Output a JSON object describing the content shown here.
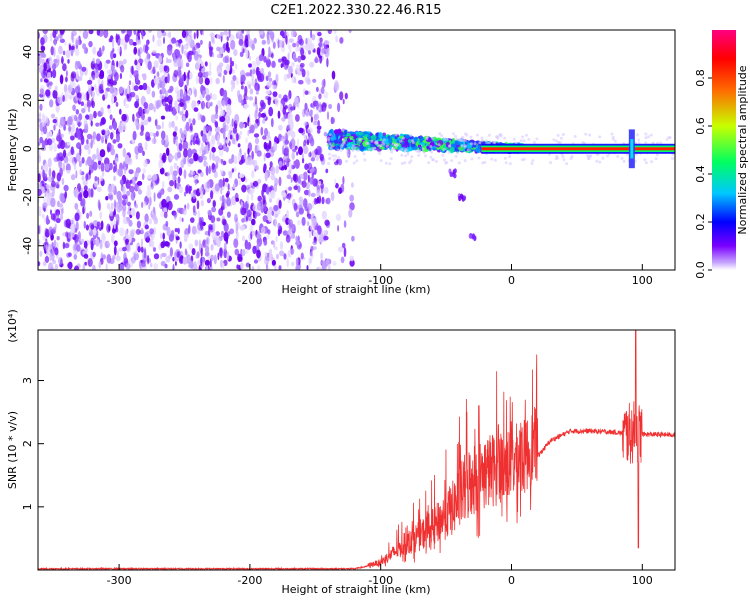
{
  "title": "C2E1.2022.330.22.46.R15",
  "chart_data": [
    {
      "type": "heatmap",
      "xlabel": "Height of straight line (km)",
      "ylabel": "Frequency (Hz)",
      "xlim": [
        -362,
        125
      ],
      "ylim": [
        -50,
        49
      ],
      "x_ticks": [
        -300,
        -200,
        -100,
        0,
        100
      ],
      "x_tick_labels": [
        "-300",
        "-200",
        "-100",
        "0",
        "100"
      ],
      "y_ticks": [
        -40,
        -20,
        0,
        20,
        40
      ],
      "y_tick_labels": [
        "-40",
        "-20",
        "0",
        "20",
        "40"
      ],
      "colorbar": {
        "label": "Normalized spectral amplitude",
        "range": [
          0,
          1
        ],
        "ticks": [
          0,
          0.2,
          0.4,
          0.6,
          0.8
        ],
        "tick_labels": [
          "0.0",
          "0.2",
          "0.4",
          "0.6",
          "0.8"
        ],
        "colormap": [
          "#ffffff",
          "#7a00ff",
          "#0000ff",
          "#00c8ff",
          "#00ff60",
          "#c8ff00",
          "#ff6a00",
          "#ff0000",
          "#ff0080"
        ]
      },
      "features": {
        "noise_region_x": [
          -362,
          -140
        ],
        "transition_region_x": [
          -140,
          10
        ],
        "tone_x": [
          0,
          125
        ],
        "tone_frequency_hz": 0,
        "spike_x": 92,
        "drift_branch": [
          [
            -45,
            -10
          ],
          [
            -38,
            -20
          ],
          [
            -30,
            -36
          ]
        ]
      },
      "grid": false
    },
    {
      "type": "line",
      "xlabel": "Height of straight line (km)",
      "ylabel": "SNR (10 * v/v)",
      "y_multiplier_label": "(x10⁴)",
      "xlim": [
        -362,
        125
      ],
      "ylim": [
        0,
        3.8
      ],
      "x_ticks": [
        -300,
        -200,
        -100,
        0,
        100
      ],
      "x_tick_labels": [
        "-300",
        "-200",
        "-100",
        "0",
        "100"
      ],
      "y_ticks": [
        1,
        2,
        3
      ],
      "y_tick_labels": [
        "1",
        "2",
        "3"
      ],
      "color": "#f03030",
      "envelope_points": [
        {
          "x": -362,
          "y": 0.02
        },
        {
          "x": -120,
          "y": 0.02
        },
        {
          "x": -100,
          "y": 0.1
        },
        {
          "x": -80,
          "y": 0.35
        },
        {
          "x": -60,
          "y": 0.55
        },
        {
          "x": -45,
          "y": 0.8
        },
        {
          "x": -30,
          "y": 1.2
        },
        {
          "x": -15,
          "y": 1.35
        },
        {
          "x": -5,
          "y": 1.4
        },
        {
          "x": 10,
          "y": 1.55
        },
        {
          "x": 20,
          "y": 1.8
        },
        {
          "x": 30,
          "y": 2.05
        },
        {
          "x": 45,
          "y": 2.2
        },
        {
          "x": 60,
          "y": 2.2
        },
        {
          "x": 80,
          "y": 2.18
        },
        {
          "x": 90,
          "y": 2.15
        },
        {
          "x": 95,
          "y": 2.2
        },
        {
          "x": 100,
          "y": 2.15
        },
        {
          "x": 125,
          "y": 2.14
        }
      ],
      "peaks": [
        {
          "x": -25,
          "y": 2.6
        },
        {
          "x": -10,
          "y": 2.3
        },
        {
          "x": 95,
          "y": 3.8
        }
      ],
      "minimum_near_spike": {
        "x": 97,
        "y": 0.35
      },
      "grid": false
    }
  ]
}
